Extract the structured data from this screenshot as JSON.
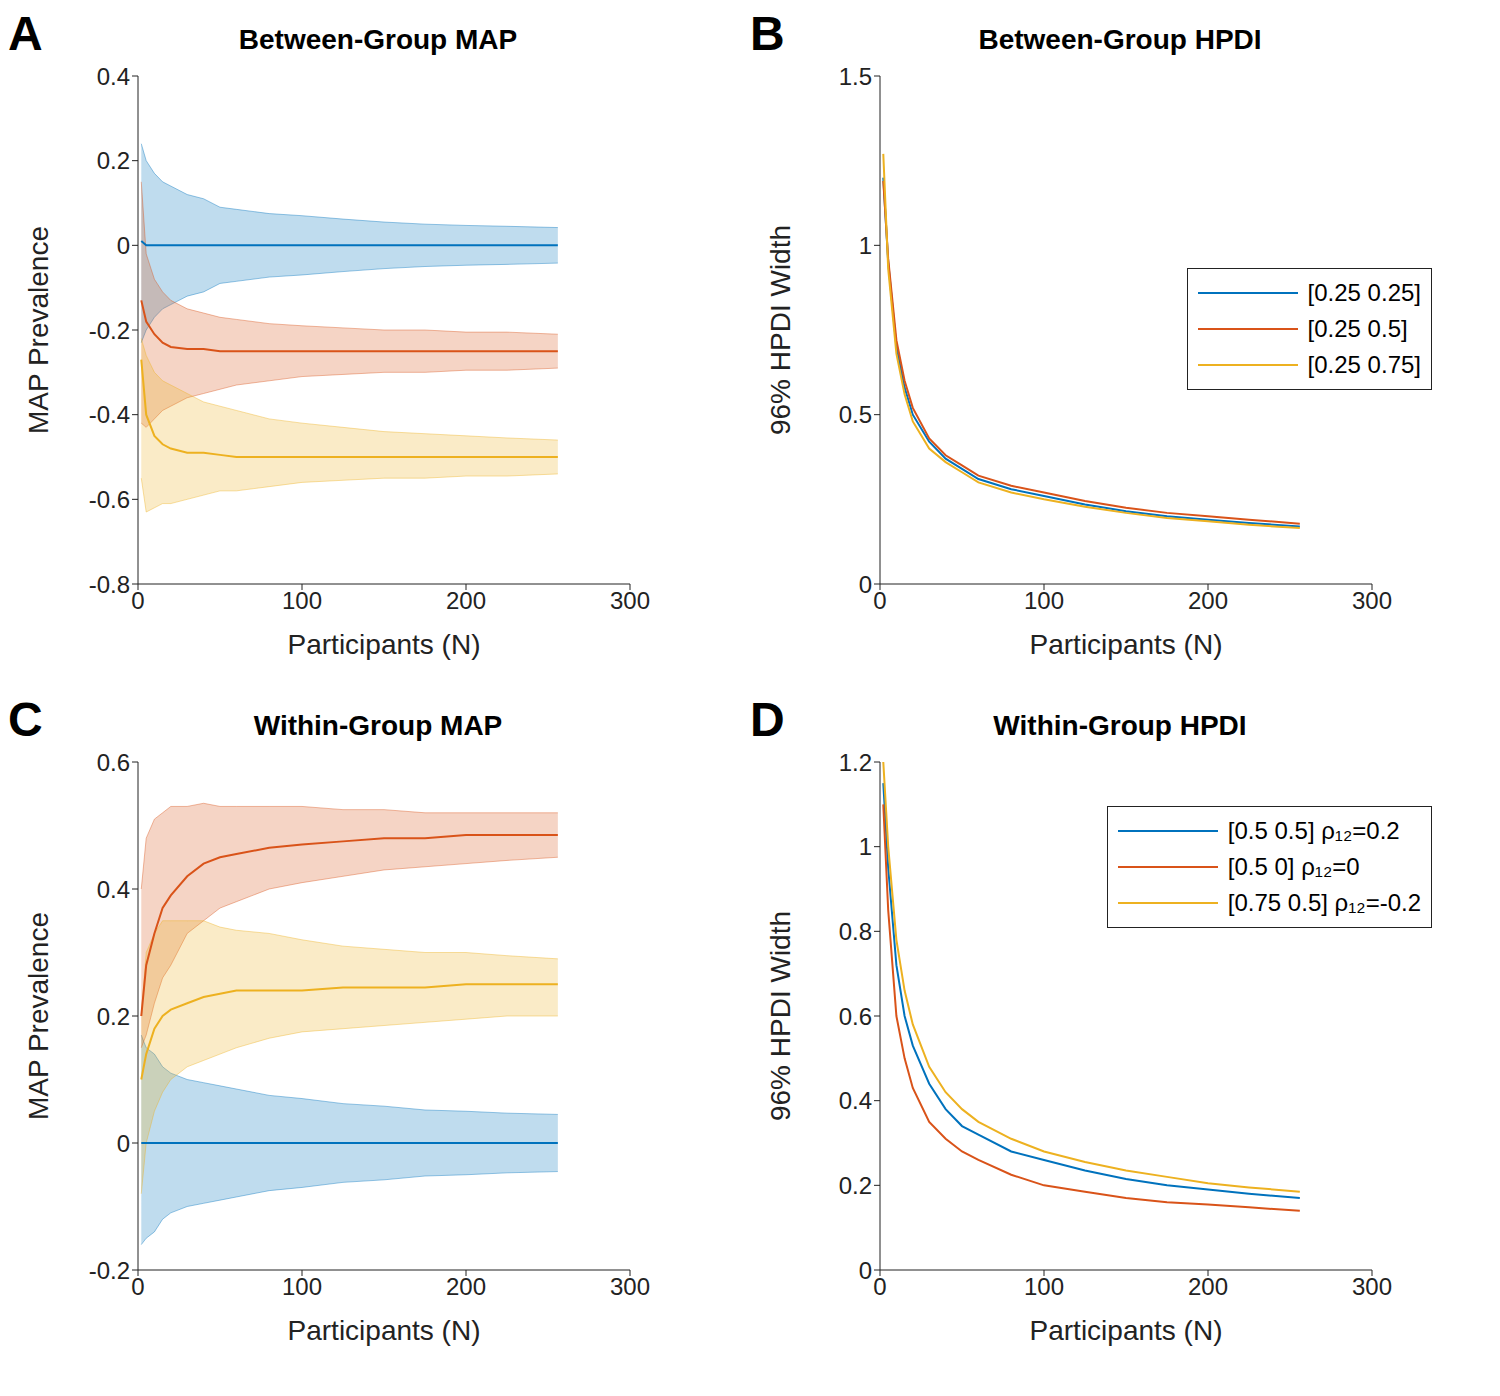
{
  "chart_data": [
    {
      "type": "line",
      "panel_label": "A",
      "title": "Between-Group MAP",
      "xlabel": "Participants (N)",
      "ylabel": "MAP Prevalence",
      "xlim": [
        0,
        300
      ],
      "xticks": [
        0,
        100,
        200,
        300
      ],
      "ylim": [
        -0.8,
        0.4
      ],
      "yticks": [
        -0.8,
        -0.6,
        -0.4,
        -0.2,
        0,
        0.2,
        0.4
      ],
      "x": [
        2,
        5,
        10,
        15,
        20,
        30,
        40,
        50,
        60,
        80,
        100,
        125,
        150,
        175,
        200,
        225,
        256
      ],
      "series": [
        {
          "color": "#0072BD",
          "values": [
            0.01,
            0,
            0,
            0,
            0,
            0,
            0,
            0,
            0,
            0,
            0,
            0,
            0,
            0,
            0,
            0,
            0
          ],
          "upper": [
            0.24,
            0.2,
            0.17,
            0.15,
            0.14,
            0.12,
            0.11,
            0.09,
            0.085,
            0.075,
            0.07,
            0.062,
            0.055,
            0.05,
            0.047,
            0.045,
            0.042
          ],
          "lower": [
            -0.23,
            -0.2,
            -0.17,
            -0.15,
            -0.14,
            -0.12,
            -0.11,
            -0.09,
            -0.085,
            -0.075,
            -0.07,
            -0.062,
            -0.055,
            -0.05,
            -0.047,
            -0.045,
            -0.042
          ]
        },
        {
          "color": "#D95319",
          "values": [
            -0.13,
            -0.18,
            -0.21,
            -0.23,
            -0.24,
            -0.245,
            -0.245,
            -0.25,
            -0.25,
            -0.25,
            -0.25,
            -0.25,
            -0.25,
            -0.25,
            -0.25,
            -0.25,
            -0.25
          ],
          "upper": [
            0.15,
            -0.02,
            -0.08,
            -0.11,
            -0.13,
            -0.15,
            -0.16,
            -0.17,
            -0.175,
            -0.185,
            -0.19,
            -0.195,
            -0.2,
            -0.2,
            -0.205,
            -0.205,
            -0.21
          ],
          "lower": [
            -0.42,
            -0.43,
            -0.41,
            -0.39,
            -0.38,
            -0.36,
            -0.35,
            -0.34,
            -0.33,
            -0.32,
            -0.31,
            -0.305,
            -0.3,
            -0.3,
            -0.295,
            -0.295,
            -0.29
          ]
        },
        {
          "color": "#EDB120",
          "values": [
            -0.27,
            -0.4,
            -0.45,
            -0.47,
            -0.48,
            -0.49,
            -0.49,
            -0.495,
            -0.5,
            -0.5,
            -0.5,
            -0.5,
            -0.5,
            -0.5,
            -0.5,
            -0.5,
            -0.5
          ],
          "upper": [
            -0.22,
            -0.26,
            -0.3,
            -0.32,
            -0.33,
            -0.35,
            -0.37,
            -0.38,
            -0.39,
            -0.41,
            -0.42,
            -0.43,
            -0.44,
            -0.445,
            -0.45,
            -0.455,
            -0.46
          ],
          "lower": [
            -0.55,
            -0.63,
            -0.62,
            -0.61,
            -0.61,
            -0.6,
            -0.59,
            -0.58,
            -0.58,
            -0.57,
            -0.56,
            -0.555,
            -0.55,
            -0.55,
            -0.545,
            -0.545,
            -0.54
          ]
        }
      ]
    },
    {
      "type": "line",
      "panel_label": "B",
      "title": "Between-Group HPDI",
      "xlabel": "Participants (N)",
      "ylabel": "96% HPDI Width",
      "xlim": [
        0,
        300
      ],
      "xticks": [
        0,
        100,
        200,
        300
      ],
      "ylim": [
        0,
        1.5
      ],
      "yticks": [
        0,
        0.5,
        1,
        1.5
      ],
      "legend": "right",
      "x": [
        2,
        5,
        10,
        15,
        20,
        30,
        40,
        50,
        60,
        80,
        100,
        125,
        150,
        175,
        200,
        225,
        256
      ],
      "series": [
        {
          "name": "[0.25 0.25]",
          "color": "#0072BD",
          "values": [
            1.2,
            0.95,
            0.7,
            0.58,
            0.5,
            0.42,
            0.37,
            0.34,
            0.31,
            0.28,
            0.26,
            0.235,
            0.215,
            0.2,
            0.19,
            0.18,
            0.17
          ]
        },
        {
          "name": "[0.25 0.5]",
          "color": "#D95319",
          "values": [
            1.19,
            0.96,
            0.72,
            0.6,
            0.52,
            0.43,
            0.38,
            0.35,
            0.32,
            0.29,
            0.27,
            0.245,
            0.225,
            0.21,
            0.2,
            0.19,
            0.178
          ]
        },
        {
          "name": "[0.25 0.75]",
          "color": "#EDB120",
          "values": [
            1.27,
            0.93,
            0.68,
            0.56,
            0.48,
            0.4,
            0.36,
            0.33,
            0.3,
            0.27,
            0.25,
            0.228,
            0.21,
            0.195,
            0.185,
            0.175,
            0.165
          ]
        }
      ]
    },
    {
      "type": "line",
      "panel_label": "C",
      "title": "Within-Group MAP",
      "xlabel": "Participants (N)",
      "ylabel": "MAP Prevalence",
      "xlim": [
        0,
        300
      ],
      "xticks": [
        0,
        100,
        200,
        300
      ],
      "ylim": [
        -0.2,
        0.6
      ],
      "yticks": [
        -0.2,
        0,
        0.2,
        0.4,
        0.6
      ],
      "x": [
        2,
        5,
        10,
        15,
        20,
        30,
        40,
        50,
        60,
        80,
        100,
        125,
        150,
        175,
        200,
        225,
        256
      ],
      "series": [
        {
          "color": "#0072BD",
          "values": [
            0,
            0,
            0,
            0,
            0,
            0,
            0,
            0,
            0,
            0,
            0,
            0,
            0,
            0,
            0,
            0,
            0
          ],
          "upper": [
            0.17,
            0.15,
            0.14,
            0.12,
            0.11,
            0.1,
            0.095,
            0.09,
            0.085,
            0.075,
            0.07,
            0.062,
            0.058,
            0.052,
            0.05,
            0.047,
            0.045
          ],
          "lower": [
            -0.16,
            -0.15,
            -0.14,
            -0.12,
            -0.11,
            -0.1,
            -0.095,
            -0.09,
            -0.085,
            -0.075,
            -0.07,
            -0.062,
            -0.058,
            -0.052,
            -0.05,
            -0.047,
            -0.045
          ]
        },
        {
          "color": "#D95319",
          "values": [
            0.2,
            0.28,
            0.33,
            0.37,
            0.39,
            0.42,
            0.44,
            0.45,
            0.455,
            0.465,
            0.47,
            0.475,
            0.48,
            0.48,
            0.485,
            0.485,
            0.485
          ],
          "upper": [
            0.4,
            0.48,
            0.51,
            0.52,
            0.53,
            0.53,
            0.535,
            0.53,
            0.53,
            0.53,
            0.53,
            0.525,
            0.525,
            0.52,
            0.52,
            0.52,
            0.52
          ],
          "lower": [
            0.15,
            0.17,
            0.22,
            0.26,
            0.28,
            0.33,
            0.35,
            0.37,
            0.38,
            0.4,
            0.41,
            0.42,
            0.43,
            0.435,
            0.44,
            0.445,
            0.45
          ]
        },
        {
          "color": "#EDB120",
          "values": [
            0.1,
            0.14,
            0.18,
            0.2,
            0.21,
            0.22,
            0.23,
            0.235,
            0.24,
            0.24,
            0.24,
            0.245,
            0.245,
            0.245,
            0.25,
            0.25,
            0.25
          ],
          "upper": [
            0.2,
            0.3,
            0.33,
            0.35,
            0.35,
            0.35,
            0.35,
            0.34,
            0.335,
            0.33,
            0.32,
            0.31,
            0.305,
            0.3,
            0.3,
            0.295,
            0.29
          ],
          "lower": [
            -0.08,
            0.0,
            0.05,
            0.08,
            0.1,
            0.12,
            0.13,
            0.14,
            0.15,
            0.165,
            0.175,
            0.18,
            0.185,
            0.19,
            0.195,
            0.2,
            0.2
          ]
        }
      ]
    },
    {
      "type": "line",
      "panel_label": "D",
      "title": "Within-Group HPDI",
      "xlabel": "Participants (N)",
      "ylabel": "96% HPDI Width",
      "xlim": [
        0,
        300
      ],
      "xticks": [
        0,
        100,
        200,
        300
      ],
      "ylim": [
        0,
        1.2
      ],
      "yticks": [
        0,
        0.2,
        0.4,
        0.6,
        0.8,
        1,
        1.2
      ],
      "legend": "upper right",
      "x": [
        2,
        5,
        10,
        15,
        20,
        30,
        40,
        50,
        60,
        80,
        100,
        125,
        150,
        175,
        200,
        225,
        256
      ],
      "series": [
        {
          "name": "[0.5 0.5] ρ₁₂=0.2",
          "color": "#0072BD",
          "values": [
            1.15,
            0.95,
            0.72,
            0.6,
            0.53,
            0.44,
            0.38,
            0.34,
            0.32,
            0.28,
            0.26,
            0.235,
            0.215,
            0.2,
            0.19,
            0.18,
            0.17
          ]
        },
        {
          "name": "[0.5 0] ρ₁₂=0",
          "color": "#D95319",
          "values": [
            1.1,
            0.85,
            0.6,
            0.5,
            0.43,
            0.35,
            0.31,
            0.28,
            0.26,
            0.225,
            0.2,
            0.185,
            0.17,
            0.16,
            0.155,
            0.148,
            0.14
          ]
        },
        {
          "name": "[0.75 0.5] ρ₁₂=-0.2",
          "color": "#EDB120",
          "values": [
            1.2,
            1.0,
            0.78,
            0.66,
            0.58,
            0.48,
            0.42,
            0.38,
            0.35,
            0.31,
            0.28,
            0.255,
            0.235,
            0.22,
            0.205,
            0.195,
            0.185
          ]
        }
      ]
    }
  ]
}
